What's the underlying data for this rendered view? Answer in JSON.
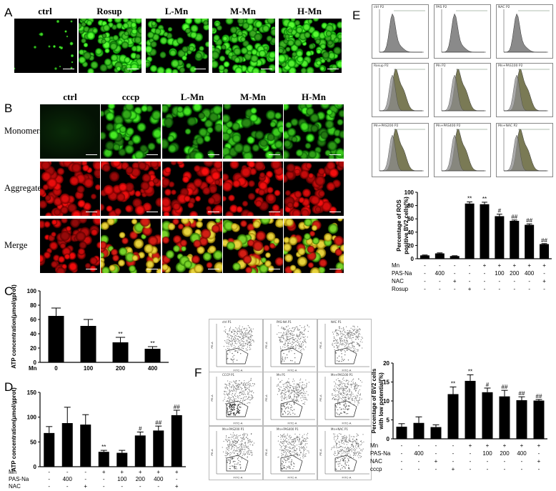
{
  "panels": {
    "A": {
      "label": "A",
      "titles": [
        "ctrl",
        "Rosup",
        "L-Mn",
        "M-Mn",
        "H-Mn"
      ]
    },
    "B": {
      "label": "B",
      "titles": [
        "ctrl",
        "cccp",
        "L-Mn",
        "M-Mn",
        "H-Mn"
      ],
      "rows": [
        "Monomers",
        "Aggregates",
        "Merge"
      ]
    },
    "C": {
      "label": "C"
    },
    "D": {
      "label": "D"
    },
    "E": {
      "label": "E",
      "flow_titles": [
        "ctrl P2",
        "PAS P2",
        "NAC P2",
        "Rosup P2",
        "Mn P2",
        "Mn+PAS100 P2",
        "Mn+PAS200 P2",
        "Mn+PAS400 P2",
        "Mn+NAC P2"
      ]
    },
    "F": {
      "label": "F",
      "flow_titles": [
        "ctrl P1",
        "PAS-NA P1",
        "NAC P1",
        "CCCP P1",
        "Mn P1",
        "Mn+PAS100 P1",
        "Mn+PAS200 P1",
        "Mn+PAS400 P1",
        "Mn+NAC P1"
      ],
      "flow_axis_x": "FITC-A",
      "flow_axis_y": "PE-A"
    }
  },
  "chart_data": [
    {
      "id": "C",
      "type": "bar",
      "ylabel": "ATP concentration(μmol/gprot)",
      "ylim": [
        0,
        100
      ],
      "yticks": [
        0,
        20,
        40,
        60,
        80,
        100
      ],
      "group_label": "Mn",
      "categories": [
        "0",
        "100",
        "200",
        "400"
      ],
      "values": [
        65,
        51,
        28,
        19
      ],
      "errors": [
        11,
        9,
        7,
        3
      ],
      "annotations": [
        "",
        "",
        "**",
        "**"
      ]
    },
    {
      "id": "D",
      "type": "bar",
      "ylabel": "ATP concentration(μmol/gprot)",
      "ylim": [
        0,
        150
      ],
      "yticks": [
        0,
        50,
        100,
        150
      ],
      "values": [
        68,
        88,
        85,
        30,
        28,
        63,
        73,
        104
      ],
      "errors": [
        13,
        32,
        20,
        3,
        5,
        7,
        9,
        10
      ],
      "annotations": [
        "",
        "",
        "",
        "**",
        "",
        "#",
        "##",
        "##"
      ],
      "treatment_rows": [
        {
          "label": "Mn",
          "cells": [
            "-",
            "-",
            "-",
            "+",
            "+",
            "+",
            "+",
            "+"
          ]
        },
        {
          "label": "PAS-Na",
          "cells": [
            "-",
            "400",
            "-",
            "-",
            "100",
            "200",
            "400",
            "-"
          ]
        },
        {
          "label": "NAC",
          "cells": [
            "-",
            "-",
            "+",
            "-",
            "-",
            "-",
            "-",
            "+"
          ]
        }
      ]
    },
    {
      "id": "E",
      "type": "bar",
      "ylabel": "Percentage of ROS positive BV2 cells(%)",
      "ylim": [
        0,
        100
      ],
      "yticks": [
        0,
        20,
        40,
        60,
        80,
        100
      ],
      "values": [
        5,
        8,
        4,
        83,
        82,
        64,
        57,
        51,
        22
      ],
      "errors": [
        0.6,
        0.8,
        0.5,
        2.5,
        3,
        3,
        1.2,
        1.5,
        0.8
      ],
      "annotations": [
        "",
        "",
        "",
        "**",
        "**",
        "#",
        "##",
        "##",
        "##"
      ],
      "treatment_rows": [
        {
          "label": "Mn",
          "cells": [
            "-",
            "-",
            "-",
            "-",
            "+",
            "+",
            "+",
            "+",
            "+"
          ]
        },
        {
          "label": "PAS-Na",
          "cells": [
            "-",
            "400",
            "-",
            "-",
            "-",
            "100",
            "200",
            "400",
            "-"
          ]
        },
        {
          "label": "NAC",
          "cells": [
            "-",
            "-",
            "+",
            "-",
            "-",
            "-",
            "-",
            "-",
            "+"
          ]
        },
        {
          "label": "Rosup",
          "cells": [
            "-",
            "-",
            "-",
            "+",
            "-",
            "-",
            "-",
            "-",
            "-"
          ]
        }
      ]
    },
    {
      "id": "F",
      "type": "bar",
      "ylabel": "Percentage of BV2 cells with low potential(%)",
      "ylim": [
        0,
        20
      ],
      "yticks": [
        0,
        5,
        10,
        15,
        20
      ],
      "values": [
        3.2,
        4.2,
        3.1,
        11.8,
        15.3,
        12.3,
        11.2,
        10.2,
        10.1
      ],
      "errors": [
        0.8,
        1.6,
        0.6,
        1.9,
        1.6,
        1.1,
        1.6,
        0.9,
        0.3
      ],
      "annotations": [
        "",
        "",
        "",
        "**",
        "**",
        "#",
        "##",
        "##",
        "##"
      ],
      "treatment_rows": [
        {
          "label": "Mn",
          "cells": [
            "-",
            "-",
            "-",
            "-",
            "+",
            "+",
            "+",
            "+",
            "+"
          ]
        },
        {
          "label": "PAS-Na",
          "cells": [
            "-",
            "400",
            "-",
            "-",
            "-",
            "100",
            "200",
            "400",
            "-"
          ]
        },
        {
          "label": "NAC",
          "cells": [
            "-",
            "-",
            "+",
            "-",
            "-",
            "-",
            "-",
            "-",
            "+"
          ]
        },
        {
          "label": "cccp",
          "cells": [
            "-",
            "-",
            "-",
            "+",
            "-",
            "-",
            "-",
            "-",
            "-"
          ]
        }
      ]
    }
  ]
}
